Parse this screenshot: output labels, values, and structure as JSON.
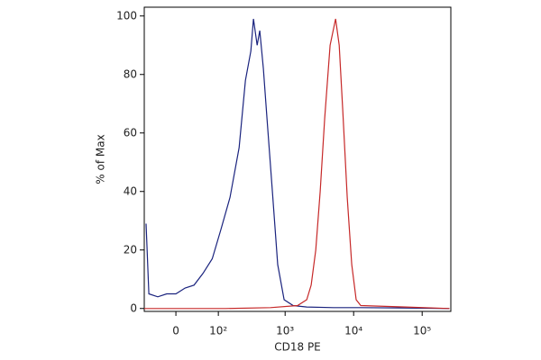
{
  "chart_data": {
    "type": "line",
    "xlabel": "CD18 PE",
    "ylabel": "% of Max",
    "xscale": "biexponential",
    "xlim": [
      -65,
      262000
    ],
    "ylim": [
      -1,
      103
    ],
    "xticks": [
      0,
      {
        "value": 100,
        "label": "10²"
      },
      {
        "value": 1000,
        "label": "10³"
      },
      {
        "value": 10000,
        "label": "10⁴"
      },
      {
        "value": 100000,
        "label": "10⁵"
      }
    ],
    "yticks": [
      0,
      20,
      40,
      60,
      80,
      100
    ],
    "series": [
      {
        "color": "#1a237e",
        "x": [
          -60,
          -53,
          -33,
          -16,
          0,
          16,
          33,
          53,
          79,
          110,
          153,
          210,
          261,
          314,
          343,
          389,
          426,
          481,
          543,
          651,
          780,
          968,
          1311,
          2066,
          5100,
          12700,
          42600,
          250000
        ],
        "values": [
          29,
          5,
          4,
          5,
          5,
          7,
          8,
          12,
          17,
          27,
          38,
          55,
          78,
          88,
          99,
          90,
          95,
          82,
          65,
          40,
          15,
          3,
          1,
          0.5,
          0.3,
          0.3,
          0.2,
          0
        ]
      },
      {
        "color": "#c62828",
        "x": [
          -65,
          8,
          131,
          611,
          1520,
          2066,
          2400,
          2800,
          3250,
          3780,
          4540,
          5450,
          6150,
          6940,
          8070,
          9380,
          10900,
          12700,
          58000,
          250000
        ],
        "values": [
          0,
          0,
          0,
          0.3,
          1,
          3,
          8,
          20,
          40,
          65,
          90,
          99,
          90,
          68,
          38,
          15,
          3,
          1,
          0.5,
          0
        ]
      }
    ]
  }
}
